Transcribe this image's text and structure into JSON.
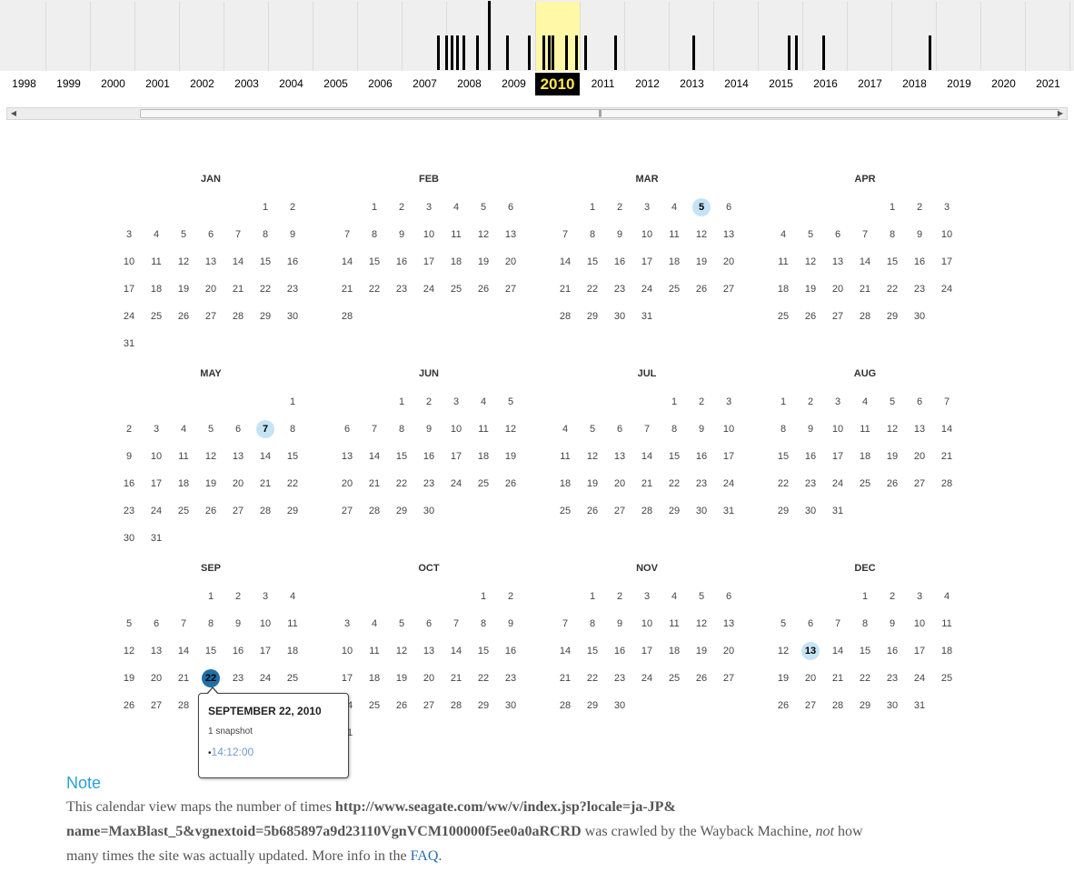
{
  "timeline": {
    "years": [
      "1998",
      "1999",
      "2000",
      "2001",
      "2002",
      "2003",
      "2004",
      "2005",
      "2006",
      "2007",
      "2008",
      "2009",
      "2010",
      "2011",
      "2012",
      "2013",
      "2014",
      "2015",
      "2016",
      "2017",
      "2018",
      "2019",
      "2020",
      "2021"
    ],
    "selected_year": "2010"
  },
  "calendar": {
    "year": "2010",
    "months": [
      {
        "name": "JAN",
        "offset": 5,
        "days": 31,
        "snapshots": []
      },
      {
        "name": "FEB",
        "offset": 1,
        "days": 28,
        "snapshots": []
      },
      {
        "name": "MAR",
        "offset": 1,
        "days": 31,
        "snapshots": [
          5
        ]
      },
      {
        "name": "APR",
        "offset": 4,
        "days": 30,
        "snapshots": []
      },
      {
        "name": "MAY",
        "offset": 6,
        "days": 31,
        "snapshots": [
          7
        ]
      },
      {
        "name": "JUN",
        "offset": 2,
        "days": 30,
        "snapshots": []
      },
      {
        "name": "JUL",
        "offset": 4,
        "days": 31,
        "snapshots": []
      },
      {
        "name": "AUG",
        "offset": 0,
        "days": 31,
        "snapshots": []
      },
      {
        "name": "SEP",
        "offset": 3,
        "days": 30,
        "snapshots": [
          22
        ]
      },
      {
        "name": "OCT",
        "offset": 5,
        "days": 31,
        "snapshots": []
      },
      {
        "name": "NOV",
        "offset": 1,
        "days": 30,
        "snapshots": []
      },
      {
        "name": "DEC",
        "offset": 3,
        "days": 31,
        "snapshots": [
          13
        ]
      }
    ],
    "active_day": {
      "month": 8,
      "day": 22
    }
  },
  "popup": {
    "date": "SEPTEMBER 22, 2010",
    "count": "1 snapshot",
    "bullet": "•",
    "time": "14:12:00"
  },
  "note": {
    "title": "Note",
    "text_pre": "This calendar view maps the number of times ",
    "url_line1": "http://www.seagate.com/ww/v/index.jsp?locale=ja-JP&",
    "url_line2": "name=MaxBlast_5&vgnextoid=5b685897a9d23110VgnVCM100000f5ee0a0aRCRD",
    "text_mid": " was crawled by the Wayback Machine, ",
    "text_not": "not",
    "text_post": " how many times the site was actually updated. More info in the ",
    "faq_link": "FAQ",
    "text_end": "."
  },
  "colors": {
    "selected_year_bg": "#000000",
    "selected_year_text": "#ffe84a",
    "selected_year_column": "#fff8a6",
    "snapshot_day": "#c6e3f6",
    "active_day": "#1e6fa8",
    "note_title": "#2a9fd6",
    "link": "#2a6db3"
  },
  "icons": {
    "scroll_left": "scroll-left-arrow-icon",
    "scroll_right": "scroll-right-arrow-icon",
    "scroll_grip": "scroll-grip-icon"
  }
}
